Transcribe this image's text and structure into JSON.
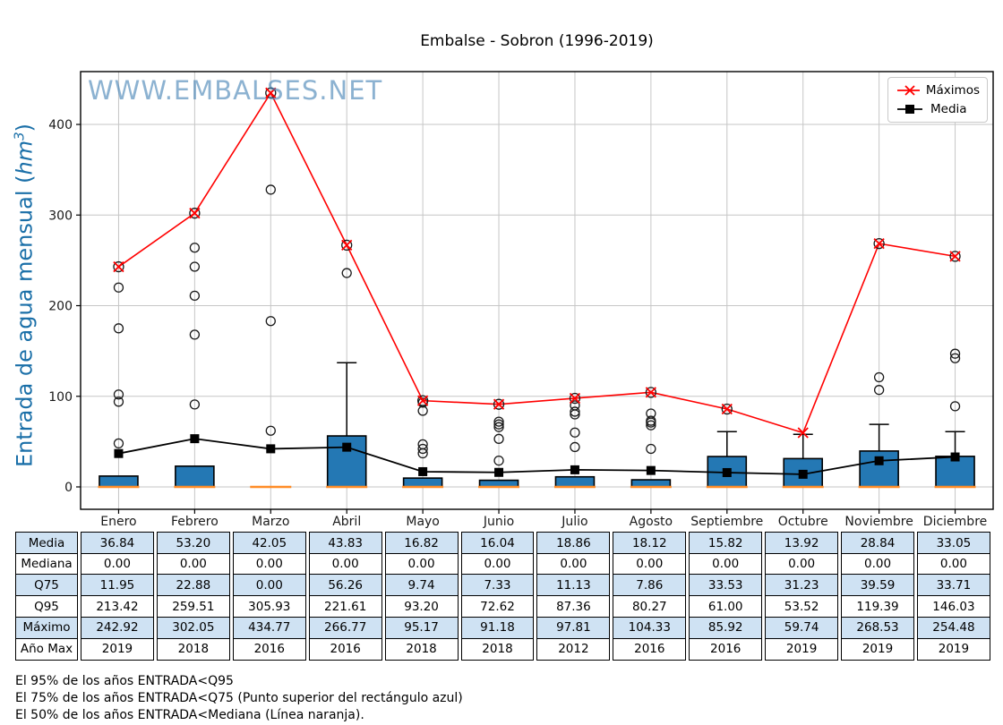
{
  "title": "Embalse - Sobron (1996-2019)",
  "watermark": "WWW.EMBALSES.NET",
  "y_axis": {
    "label": "Entrada de agua mensual ",
    "open": "(",
    "unit": "hm",
    "unit_exp": "3",
    "close": ")",
    "color": "#1a6fa8"
  },
  "legend": {
    "items": [
      {
        "label": "Máximos",
        "marker": "x-marker",
        "color": "#ff0000"
      },
      {
        "label": "Media",
        "marker": "square-marker",
        "color": "#000000"
      }
    ]
  },
  "chart_data": {
    "type": "boxplot",
    "categories": [
      "Enero",
      "Febrero",
      "Marzo",
      "Abril",
      "Mayo",
      "Junio",
      "Julio",
      "Agosto",
      "Septiembre",
      "Octubre",
      "Noviembre",
      "Diciembre"
    ],
    "ylim": [
      -24.7,
      458.3
    ],
    "yticks": [
      0,
      100,
      200,
      300,
      400
    ],
    "grid": true,
    "legend_position": "top-right",
    "series": [
      {
        "name": "Máximos",
        "color": "#ff0000",
        "marker": "x",
        "values": [
          242.92,
          302.05,
          434.77,
          266.77,
          95.17,
          91.18,
          97.81,
          104.33,
          85.92,
          59.74,
          268.53,
          254.48
        ]
      },
      {
        "name": "Media",
        "color": "#000000",
        "marker": "square",
        "values": [
          36.84,
          53.2,
          42.05,
          43.83,
          16.82,
          16.04,
          18.86,
          18.12,
          15.82,
          13.92,
          28.84,
          33.05
        ]
      }
    ],
    "boxplot": {
      "q25": [
        0,
        0,
        0,
        0,
        0,
        0,
        0,
        0,
        0,
        0,
        0,
        0
      ],
      "median": [
        0,
        0,
        0,
        0,
        0,
        0,
        0,
        0,
        0,
        0,
        0,
        0
      ],
      "q75": [
        11.95,
        22.88,
        0.0,
        56.26,
        9.74,
        7.33,
        11.13,
        7.86,
        33.53,
        31.23,
        39.59,
        33.71
      ],
      "whisker_high": [
        null,
        null,
        null,
        137,
        null,
        null,
        null,
        null,
        61,
        58,
        69,
        61
      ],
      "fliers": [
        [
          48,
          94,
          102,
          175,
          220
        ],
        [
          91,
          168,
          211,
          243,
          264
        ],
        [
          62,
          183,
          328
        ],
        [
          236
        ],
        [
          37,
          42,
          47,
          84,
          93
        ],
        [
          29,
          53,
          66,
          69,
          72
        ],
        [
          44,
          60,
          80,
          83,
          90
        ],
        [
          42,
          68,
          71,
          73,
          81
        ],
        [],
        [],
        [
          107,
          121
        ],
        [
          89,
          142,
          147
        ]
      ],
      "max_circled": [
        true,
        true,
        true,
        true,
        true,
        true,
        true,
        true,
        true,
        false,
        true,
        true
      ],
      "box_fill": "#2478b4",
      "box_edge": "#000000",
      "median_color": "#ff8c26"
    }
  },
  "table": {
    "row_labels": [
      "Media",
      "Mediana",
      "Q75",
      "Q95",
      "Máximo",
      "Año Max"
    ],
    "rows": [
      [
        "36.84",
        "53.20",
        "42.05",
        "43.83",
        "16.82",
        "16.04",
        "18.86",
        "18.12",
        "15.82",
        "13.92",
        "28.84",
        "33.05"
      ],
      [
        "0.00",
        "0.00",
        "0.00",
        "0.00",
        "0.00",
        "0.00",
        "0.00",
        "0.00",
        "0.00",
        "0.00",
        "0.00",
        "0.00"
      ],
      [
        "11.95",
        "22.88",
        "0.00",
        "56.26",
        "9.74",
        "7.33",
        "11.13",
        "7.86",
        "33.53",
        "31.23",
        "39.59",
        "33.71"
      ],
      [
        "213.42",
        "259.51",
        "305.93",
        "221.61",
        "93.20",
        "72.62",
        "87.36",
        "80.27",
        "61.00",
        "53.52",
        "119.39",
        "146.03"
      ],
      [
        "242.92",
        "302.05",
        "434.77",
        "266.77",
        "95.17",
        "91.18",
        "97.81",
        "104.33",
        "85.92",
        "59.74",
        "268.53",
        "254.48"
      ],
      [
        "2019",
        "2018",
        "2016",
        "2016",
        "2018",
        "2018",
        "2012",
        "2016",
        "2016",
        "2019",
        "2019",
        "2019"
      ]
    ],
    "shaded_rows": [
      0,
      2,
      4
    ],
    "shade_color": "#cfe2f3"
  },
  "footnotes": [
    "El 95% de los años ENTRADA<Q95",
    "El 75% de los años ENTRADA<Q75 (Punto superior del rectángulo azul)",
    "El 50% de los años ENTRADA<Mediana (Línea naranja)."
  ]
}
